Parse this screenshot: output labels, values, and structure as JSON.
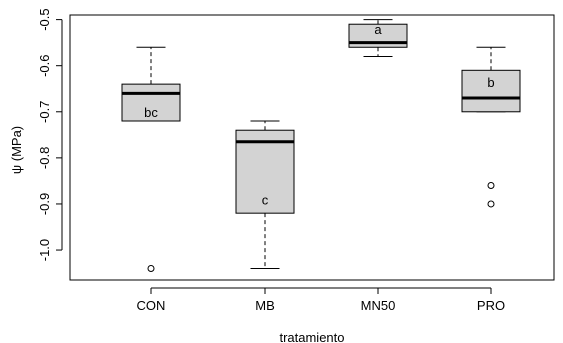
{
  "chart_data": {
    "type": "boxplot",
    "xlabel": "tratamiento",
    "ylabel": "ψ  (MPa)",
    "ylim": [
      -1.065,
      -0.49
    ],
    "yticks": [
      -1.0,
      -0.9,
      -0.8,
      -0.7,
      -0.6,
      -0.5
    ],
    "ytick_labels": [
      "-1.0",
      "-0.9",
      "-0.8",
      "-0.7",
      "-0.6",
      "-0.5"
    ],
    "grid": false,
    "legend": "none",
    "box_color": "#d3d3d3",
    "categories": [
      "CON",
      "MB",
      "MN50",
      "PRO"
    ],
    "boxes": [
      {
        "category": "CON",
        "whisker_low": -0.72,
        "q1": -0.72,
        "median": -0.66,
        "q3": -0.64,
        "whisker_high": -0.56,
        "outliers": [
          -1.04
        ],
        "letter": "bc",
        "letter_y": -0.7
      },
      {
        "category": "MB",
        "whisker_low": -1.04,
        "q1": -0.92,
        "median": -0.765,
        "q3": -0.74,
        "whisker_high": -0.72,
        "outliers": [],
        "letter": "c",
        "letter_y": -0.89
      },
      {
        "category": "MN50",
        "whisker_low": -0.58,
        "q1": -0.56,
        "median": -0.55,
        "q3": -0.51,
        "whisker_high": -0.5,
        "outliers": [],
        "letter": "a",
        "letter_y": -0.52
      },
      {
        "category": "PRO",
        "whisker_low": -0.7,
        "q1": -0.7,
        "median": -0.67,
        "q3": -0.61,
        "whisker_high": -0.56,
        "outliers": [
          -0.86,
          -0.9
        ],
        "letter": "b",
        "letter_y": -0.635
      }
    ]
  }
}
